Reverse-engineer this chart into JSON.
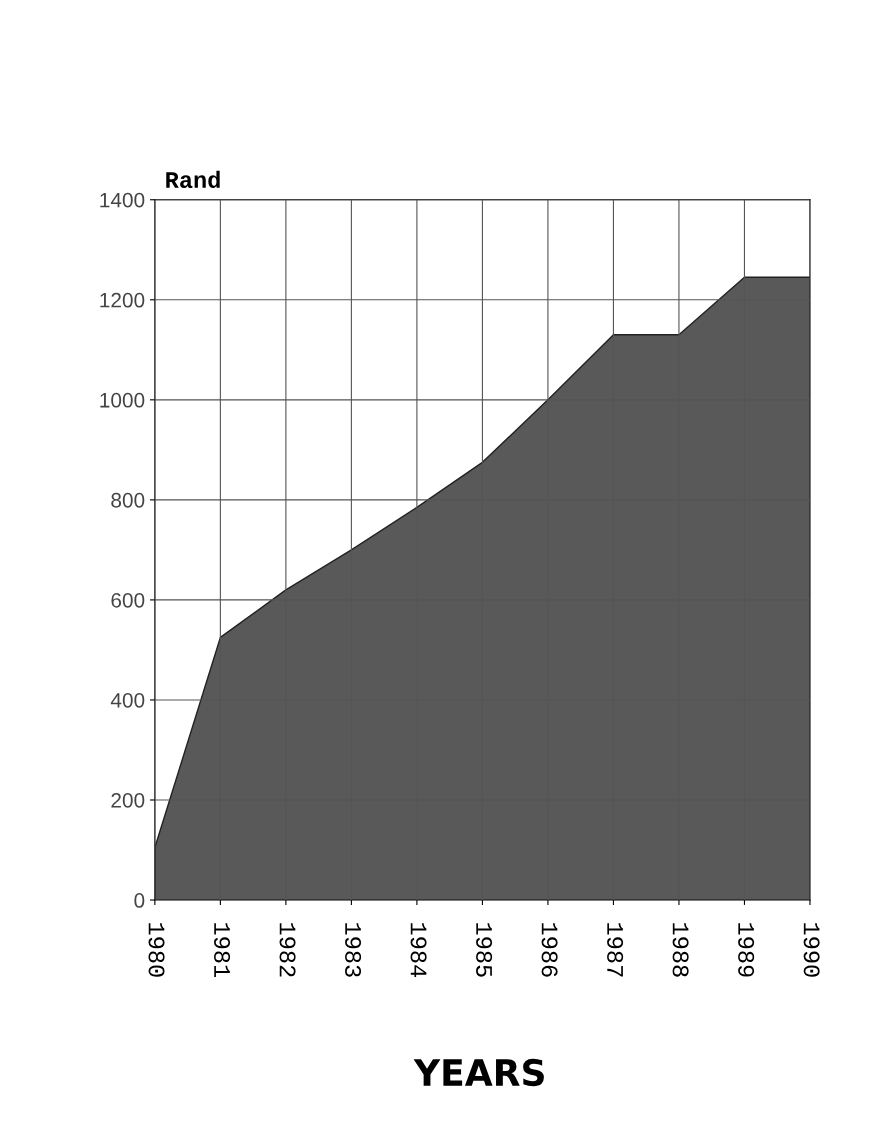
{
  "chart_data": {
    "type": "area",
    "ylabel": "Rand",
    "xlabel": "YEARS",
    "categories": [
      "1980",
      "1981",
      "1982",
      "1983",
      "1984",
      "1985",
      "1986",
      "1987",
      "1988",
      "1989",
      "1990"
    ],
    "series": [
      {
        "color": "#595959",
        "values": [
          105,
          525,
          620,
          700,
          785,
          875,
          1000,
          1130,
          1130,
          1245,
          1245
        ]
      }
    ],
    "ylim": [
      0,
      1400
    ],
    "yticks": [
      0,
      200,
      400,
      600,
      800,
      1000,
      1200,
      1400
    ],
    "grid": true
  }
}
